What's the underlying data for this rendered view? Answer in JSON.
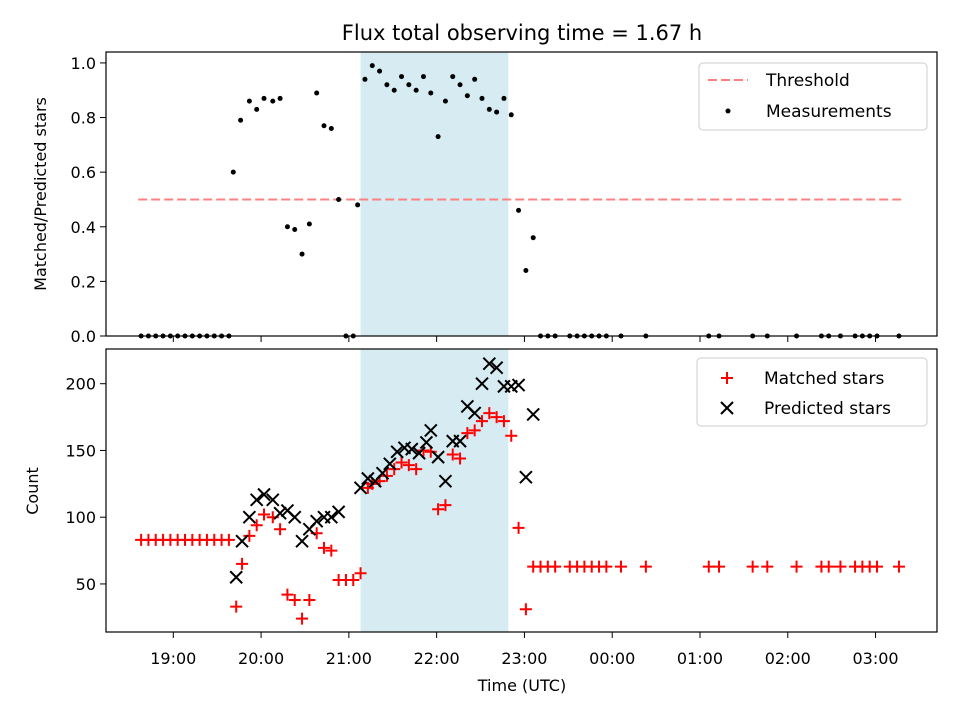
{
  "title": "Flux total observing time = 1.67 h",
  "colors": {
    "threshold": "#ff8080",
    "measurement": "#000000",
    "matched": "#ff0000",
    "predicted": "#000000",
    "highlight": "#add8e6"
  },
  "chart_data": [
    {
      "type": "scatter",
      "panel": "top",
      "ylabel": "Matched/Predicted stars",
      "xlabel": "",
      "ylim": [
        0,
        1.04
      ],
      "yticks": [
        "0.0",
        "0.2",
        "0.4",
        "0.6",
        "0.8",
        "1.0"
      ],
      "ytick_values": [
        0,
        0.2,
        0.4,
        0.6,
        0.8,
        1.0
      ],
      "legend_position": "top-right",
      "legend": [
        "Threshold",
        "Measurements"
      ],
      "highlight_span": [
        "21:08",
        "22:49"
      ],
      "threshold": {
        "name": "Threshold",
        "y": 0.5,
        "x_start": "18:36",
        "x_end": "03:18"
      },
      "series": [
        {
          "name": "Measurements",
          "points": [
            [
              "18:38",
              0.0
            ],
            [
              "18:43",
              0.0
            ],
            [
              "18:48",
              0.0
            ],
            [
              "18:53",
              0.0
            ],
            [
              "18:58",
              0.0
            ],
            [
              "19:03",
              0.0
            ],
            [
              "19:08",
              0.0
            ],
            [
              "19:13",
              0.0
            ],
            [
              "19:18",
              0.0
            ],
            [
              "19:23",
              0.0
            ],
            [
              "19:28",
              0.0
            ],
            [
              "19:33",
              0.0
            ],
            [
              "19:38",
              0.0
            ],
            [
              "19:41",
              0.6
            ],
            [
              "19:46",
              0.79
            ],
            [
              "19:52",
              0.86
            ],
            [
              "19:57",
              0.83
            ],
            [
              "20:02",
              0.87
            ],
            [
              "20:08",
              0.86
            ],
            [
              "20:13",
              0.87
            ],
            [
              "20:18",
              0.4
            ],
            [
              "20:23",
              0.39
            ],
            [
              "20:28",
              0.3
            ],
            [
              "20:33",
              0.41
            ],
            [
              "20:38",
              0.89
            ],
            [
              "20:43",
              0.77
            ],
            [
              "20:48",
              0.76
            ],
            [
              "20:53",
              0.5
            ],
            [
              "20:58",
              0.0
            ],
            [
              "21:03",
              0.0
            ],
            [
              "21:06",
              0.48
            ],
            [
              "21:11",
              0.94
            ],
            [
              "21:16",
              0.99
            ],
            [
              "21:21",
              0.97
            ],
            [
              "21:26",
              0.92
            ],
            [
              "21:31",
              0.9
            ],
            [
              "21:36",
              0.95
            ],
            [
              "21:41",
              0.92
            ],
            [
              "21:46",
              0.9
            ],
            [
              "21:51",
              0.95
            ],
            [
              "21:56",
              0.89
            ],
            [
              "22:01",
              0.73
            ],
            [
              "22:06",
              0.86
            ],
            [
              "22:11",
              0.95
            ],
            [
              "22:16",
              0.92
            ],
            [
              "22:21",
              0.88
            ],
            [
              "22:26",
              0.94
            ],
            [
              "22:31",
              0.87
            ],
            [
              "22:36",
              0.83
            ],
            [
              "22:41",
              0.82
            ],
            [
              "22:46",
              0.87
            ],
            [
              "22:51",
              0.81
            ],
            [
              "22:56",
              0.46
            ],
            [
              "23:01",
              0.24
            ],
            [
              "23:06",
              0.36
            ],
            [
              "23:11",
              0.0
            ],
            [
              "23:16",
              0.0
            ],
            [
              "23:21",
              0.0
            ],
            [
              "23:31",
              0.0
            ],
            [
              "23:36",
              0.0
            ],
            [
              "23:41",
              0.0
            ],
            [
              "23:46",
              0.0
            ],
            [
              "23:51",
              0.0
            ],
            [
              "23:56",
              0.0
            ],
            [
              "00:06",
              0.0
            ],
            [
              "00:23",
              0.0
            ],
            [
              "01:06",
              0.0
            ],
            [
              "01:13",
              0.0
            ],
            [
              "01:36",
              0.0
            ],
            [
              "01:46",
              0.0
            ],
            [
              "02:06",
              0.0
            ],
            [
              "02:23",
              0.0
            ],
            [
              "02:28",
              0.0
            ],
            [
              "02:36",
              0.0
            ],
            [
              "02:46",
              0.0
            ],
            [
              "02:51",
              0.0
            ],
            [
              "02:56",
              0.0
            ],
            [
              "03:01",
              0.0
            ],
            [
              "03:16",
              0.0
            ]
          ]
        }
      ]
    },
    {
      "type": "scatter",
      "panel": "bottom",
      "ylabel": "Count",
      "xlabel": "Time (UTC)",
      "ylim": [
        14,
        226
      ],
      "yticks": [
        "50",
        "100",
        "150",
        "200"
      ],
      "ytick_values": [
        50,
        100,
        150,
        200
      ],
      "xlim": [
        "18:14",
        "03:42"
      ],
      "xticks": [
        "19:00",
        "20:00",
        "21:00",
        "22:00",
        "23:00",
        "00:00",
        "01:00",
        "02:00",
        "03:00"
      ],
      "legend_position": "top-right",
      "legend": [
        "Matched stars",
        "Predicted stars"
      ],
      "highlight_span": [
        "21:08",
        "22:49"
      ],
      "series": [
        {
          "name": "Matched stars",
          "points": [
            [
              "18:38",
              83
            ],
            [
              "18:43",
              83
            ],
            [
              "18:48",
              83
            ],
            [
              "18:53",
              83
            ],
            [
              "18:58",
              83
            ],
            [
              "19:03",
              83
            ],
            [
              "19:08",
              83
            ],
            [
              "19:13",
              83
            ],
            [
              "19:18",
              83
            ],
            [
              "19:23",
              83
            ],
            [
              "19:28",
              83
            ],
            [
              "19:33",
              83
            ],
            [
              "19:38",
              83
            ],
            [
              "19:43",
              33
            ],
            [
              "19:47",
              65
            ],
            [
              "19:52",
              86
            ],
            [
              "19:57",
              94
            ],
            [
              "20:02",
              102
            ],
            [
              "20:08",
              100
            ],
            [
              "20:13",
              91
            ],
            [
              "20:18",
              42
            ],
            [
              "20:23",
              38
            ],
            [
              "20:28",
              24
            ],
            [
              "20:33",
              38
            ],
            [
              "20:38",
              88
            ],
            [
              "20:43",
              77
            ],
            [
              "20:48",
              75
            ],
            [
              "20:53",
              53
            ],
            [
              "20:58",
              53
            ],
            [
              "21:03",
              53
            ],
            [
              "21:08",
              58
            ],
            [
              "21:13",
              122
            ],
            [
              "21:16",
              125
            ],
            [
              "21:21",
              127
            ],
            [
              "21:26",
              131
            ],
            [
              "21:31",
              136
            ],
            [
              "21:36",
              141
            ],
            [
              "21:41",
              139
            ],
            [
              "21:46",
              136
            ],
            [
              "21:51",
              150
            ],
            [
              "21:56",
              149
            ],
            [
              "22:01",
              106
            ],
            [
              "22:06",
              109
            ],
            [
              "22:11",
              147
            ],
            [
              "22:16",
              144
            ],
            [
              "22:21",
              163
            ],
            [
              "22:26",
              165
            ],
            [
              "22:31",
              172
            ],
            [
              "22:36",
              178
            ],
            [
              "22:41",
              175
            ],
            [
              "22:46",
              172
            ],
            [
              "22:51",
              161
            ],
            [
              "22:56",
              92
            ],
            [
              "23:01",
              31
            ],
            [
              "23:06",
              63
            ],
            [
              "23:11",
              63
            ],
            [
              "23:16",
              63
            ],
            [
              "23:21",
              63
            ],
            [
              "23:31",
              63
            ],
            [
              "23:36",
              63
            ],
            [
              "23:41",
              63
            ],
            [
              "23:46",
              63
            ],
            [
              "23:51",
              63
            ],
            [
              "23:56",
              63
            ],
            [
              "00:06",
              63
            ],
            [
              "00:23",
              63
            ],
            [
              "01:06",
              63
            ],
            [
              "01:13",
              63
            ],
            [
              "01:36",
              63
            ],
            [
              "01:46",
              63
            ],
            [
              "02:06",
              63
            ],
            [
              "02:23",
              63
            ],
            [
              "02:28",
              63
            ],
            [
              "02:36",
              63
            ],
            [
              "02:46",
              63
            ],
            [
              "02:51",
              63
            ],
            [
              "02:56",
              63
            ],
            [
              "03:01",
              63
            ],
            [
              "03:16",
              63
            ]
          ]
        },
        {
          "name": "Predicted stars",
          "points": [
            [
              "19:43",
              55
            ],
            [
              "19:47",
              82
            ],
            [
              "19:52",
              100
            ],
            [
              "19:57",
              113
            ],
            [
              "20:02",
              117
            ],
            [
              "20:08",
              113
            ],
            [
              "20:13",
              103
            ],
            [
              "20:18",
              105
            ],
            [
              "20:23",
              100
            ],
            [
              "20:28",
              82
            ],
            [
              "20:33",
              91
            ],
            [
              "20:38",
              97
            ],
            [
              "20:43",
              100
            ],
            [
              "20:48",
              100
            ],
            [
              "20:53",
              104
            ],
            [
              "21:08",
              122
            ],
            [
              "21:13",
              129
            ],
            [
              "21:18",
              127
            ],
            [
              "21:23",
              133
            ],
            [
              "21:28",
              140
            ],
            [
              "21:33",
              149
            ],
            [
              "21:38",
              152
            ],
            [
              "21:43",
              151
            ],
            [
              "21:48",
              148
            ],
            [
              "21:53",
              156
            ],
            [
              "21:56",
              165
            ],
            [
              "22:01",
              145
            ],
            [
              "22:06",
              127
            ],
            [
              "22:11",
              157
            ],
            [
              "22:16",
              157
            ],
            [
              "22:21",
              183
            ],
            [
              "22:26",
              178
            ],
            [
              "22:31",
              200
            ],
            [
              "22:36",
              215
            ],
            [
              "22:41",
              212
            ],
            [
              "22:46",
              198
            ],
            [
              "22:51",
              198
            ],
            [
              "22:56",
              199
            ],
            [
              "23:01",
              130
            ],
            [
              "23:06",
              177
            ]
          ]
        }
      ]
    }
  ]
}
